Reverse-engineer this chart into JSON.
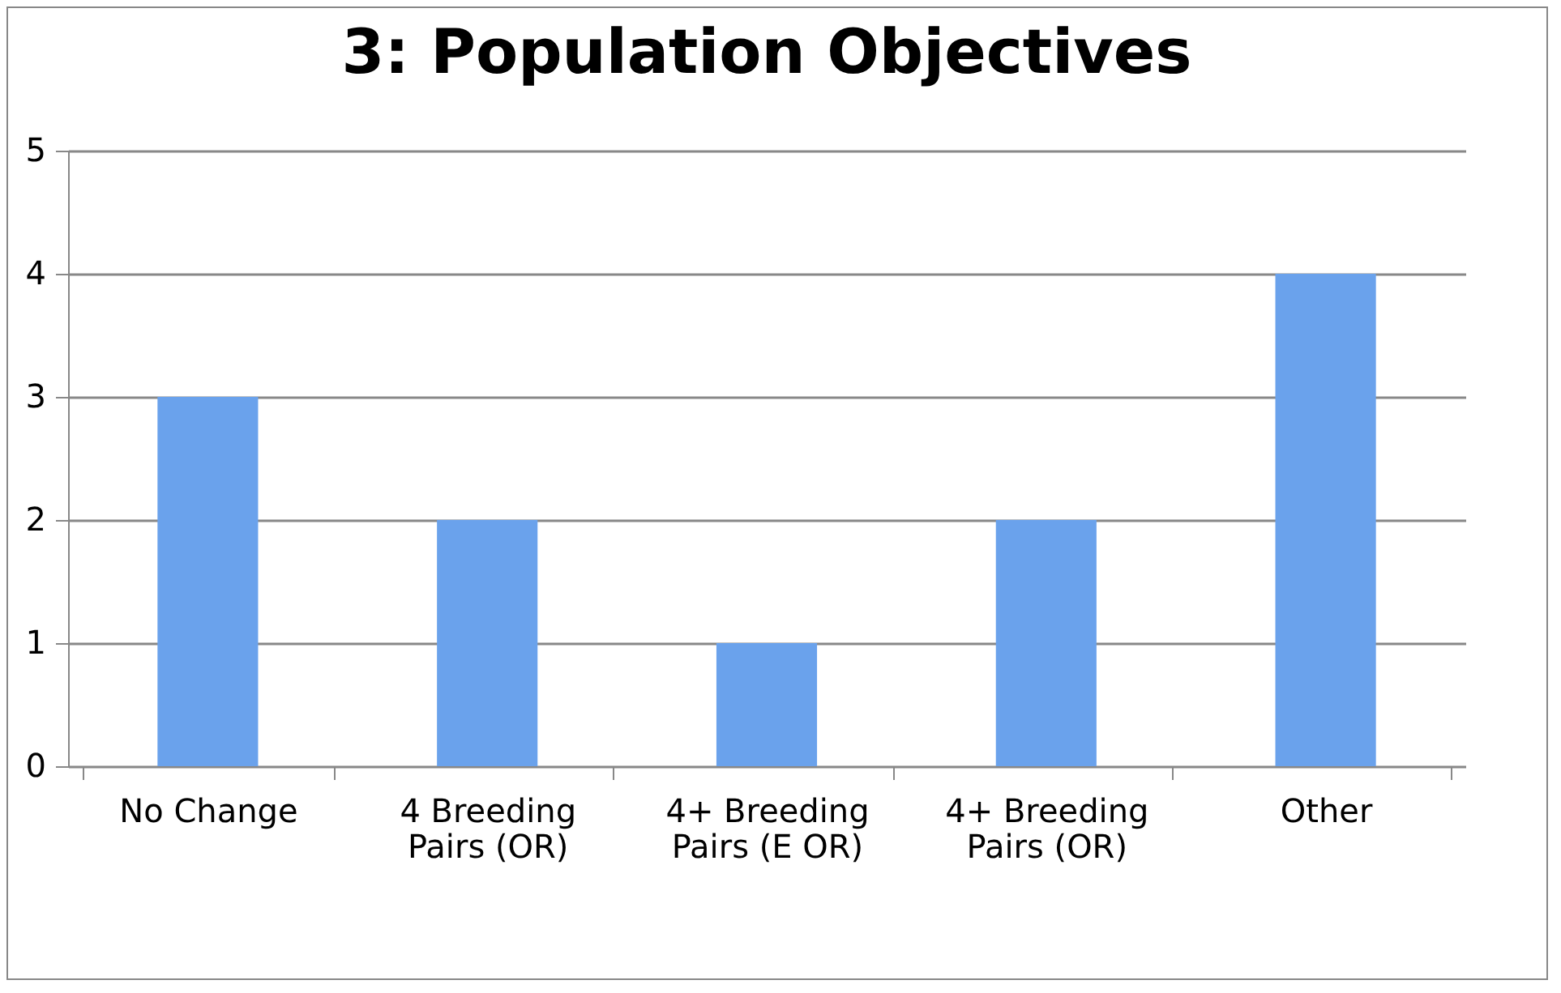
{
  "chart_data": {
    "type": "bar",
    "title": "3: Population Objectives",
    "categories": [
      "No Change",
      "4 Breeding Pairs (OR)",
      "4+ Breeding Pairs (E OR)",
      "4+ Breeding Pairs (OR)",
      "Other"
    ],
    "values": [
      3,
      2,
      1,
      2,
      4
    ],
    "color": "#6aa2ec",
    "ylim": [
      0,
      5
    ],
    "yticks": [
      0,
      1,
      2,
      3,
      4,
      5
    ],
    "grid": "y"
  }
}
